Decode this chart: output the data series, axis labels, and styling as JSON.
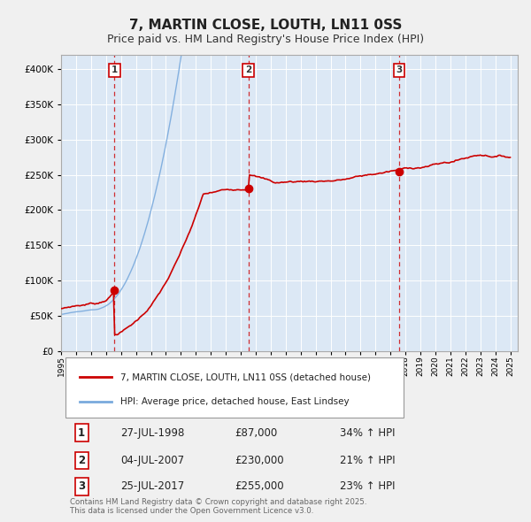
{
  "title": "7, MARTIN CLOSE, LOUTH, LN11 0SS",
  "subtitle": "Price paid vs. HM Land Registry's House Price Index (HPI)",
  "title_fontsize": 11,
  "subtitle_fontsize": 9,
  "bg_color": "#f0f0f0",
  "plot_bg_color": "#dce8f5",
  "legend_label_red": "7, MARTIN CLOSE, LOUTH, LN11 0SS (detached house)",
  "legend_label_blue": "HPI: Average price, detached house, East Lindsey",
  "red_color": "#cc0000",
  "blue_color": "#7aaadd",
  "ylabel": "",
  "xlabel": "",
  "ylim_min": 0,
  "ylim_max": 420000,
  "transactions": [
    {
      "label": "1",
      "date_num": 1998.57,
      "price": 87000,
      "info": "27-JUL-1998",
      "pct": "34%",
      "dir": "↑"
    },
    {
      "label": "2",
      "date_num": 2007.51,
      "price": 230000,
      "info": "04-JUL-2007",
      "pct": "21%",
      "dir": "↑"
    },
    {
      "label": "3",
      "date_num": 2017.57,
      "price": 255000,
      "info": "25-JUL-2017",
      "pct": "23%",
      "dir": "↑"
    }
  ],
  "footer_line1": "Contains HM Land Registry data © Crown copyright and database right 2025.",
  "footer_line2": "This data is licensed under the Open Government Licence v3.0."
}
